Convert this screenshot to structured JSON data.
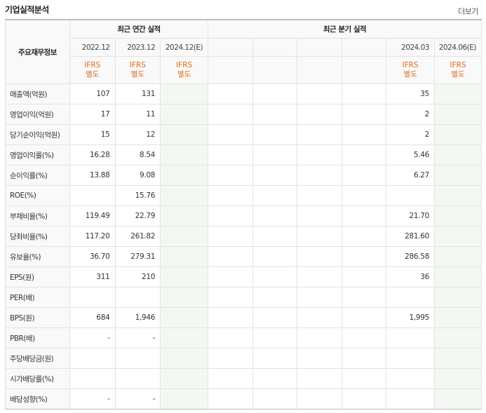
{
  "header": {
    "title": "기업실적분석",
    "more_label": "더보기"
  },
  "table": {
    "corner_label": "주요재무정보",
    "annual_group_label": "최근 연간 실적",
    "quarter_group_label": "최근 분기 실적",
    "annual_periods": [
      {
        "label": "2022.12",
        "std1": "IFRS",
        "std2": "별도",
        "estimate": false
      },
      {
        "label": "2023.12",
        "std1": "IFRS",
        "std2": "별도",
        "estimate": false
      },
      {
        "label": "2024.12(E)",
        "std1": "IFRS",
        "std2": "별도",
        "estimate": true
      }
    ],
    "quarter_periods": [
      {
        "label": "",
        "std1": "",
        "std2": "",
        "estimate": false
      },
      {
        "label": "",
        "std1": "",
        "std2": "",
        "estimate": false
      },
      {
        "label": "",
        "std1": "",
        "std2": "",
        "estimate": false
      },
      {
        "label": "",
        "std1": "",
        "std2": "",
        "estimate": false
      },
      {
        "label": "2024.03",
        "std1": "IFRS",
        "std2": "별도",
        "estimate": false
      },
      {
        "label": "2024.06(E)",
        "std1": "IFRS",
        "std2": "별도",
        "estimate": true
      }
    ],
    "rows": [
      {
        "label": "매출액(억원)",
        "group_start": true,
        "values": [
          "107",
          "131",
          "",
          "",
          "",
          "",
          "",
          "35",
          ""
        ]
      },
      {
        "label": "영업이익(억원)",
        "group_start": false,
        "values": [
          "17",
          "11",
          "",
          "",
          "",
          "",
          "",
          "2",
          ""
        ]
      },
      {
        "label": "당기순이익(억원)",
        "group_start": false,
        "values": [
          "15",
          "12",
          "",
          "",
          "",
          "",
          "",
          "2",
          ""
        ]
      },
      {
        "label": "영업이익률(%)",
        "group_start": true,
        "values": [
          "16.28",
          "8.54",
          "",
          "",
          "",
          "",
          "",
          "5.46",
          ""
        ]
      },
      {
        "label": "순이익률(%)",
        "group_start": false,
        "values": [
          "13.88",
          "9.08",
          "",
          "",
          "",
          "",
          "",
          "6.27",
          ""
        ]
      },
      {
        "label": "ROE(%)",
        "group_start": false,
        "values": [
          "",
          "15.76",
          "",
          "",
          "",
          "",
          "",
          "",
          ""
        ]
      },
      {
        "label": "부채비율(%)",
        "group_start": true,
        "values": [
          "119.49",
          "22.79",
          "",
          "",
          "",
          "",
          "",
          "21.70",
          ""
        ]
      },
      {
        "label": "당좌비율(%)",
        "group_start": false,
        "values": [
          "117.20",
          "261.82",
          "",
          "",
          "",
          "",
          "",
          "281.60",
          ""
        ]
      },
      {
        "label": "유보율(%)",
        "group_start": false,
        "values": [
          "36.70",
          "279.31",
          "",
          "",
          "",
          "",
          "",
          "286.58",
          ""
        ]
      },
      {
        "label": "EPS(원)",
        "group_start": true,
        "values": [
          "311",
          "210",
          "",
          "",
          "",
          "",
          "",
          "36",
          ""
        ]
      },
      {
        "label": "PER(배)",
        "group_start": false,
        "values": [
          "",
          "",
          "",
          "",
          "",
          "",
          "",
          "",
          ""
        ]
      },
      {
        "label": "BPS(원)",
        "group_start": false,
        "values": [
          "684",
          "1,946",
          "",
          "",
          "",
          "",
          "",
          "1,995",
          ""
        ]
      },
      {
        "label": "PBR(배)",
        "group_start": false,
        "values": [
          "-",
          "-",
          "",
          "",
          "",
          "",
          "",
          "",
          ""
        ]
      },
      {
        "label": "주당배당금(원)",
        "group_start": true,
        "values": [
          "",
          "",
          "",
          "",
          "",
          "",
          "",
          "",
          ""
        ]
      },
      {
        "label": "시가배당률(%)",
        "group_start": false,
        "values": [
          "",
          "",
          "",
          "",
          "",
          "",
          "",
          "",
          ""
        ]
      },
      {
        "label": "배당성향(%)",
        "group_start": false,
        "values": [
          "-",
          "-",
          "",
          "",
          "",
          "",
          "",
          "",
          ""
        ]
      }
    ],
    "colors": {
      "ifrs_text": "#e76a16",
      "estimate_bg": "#f3f9f2",
      "header_bg": "#f9f9f9"
    }
  }
}
